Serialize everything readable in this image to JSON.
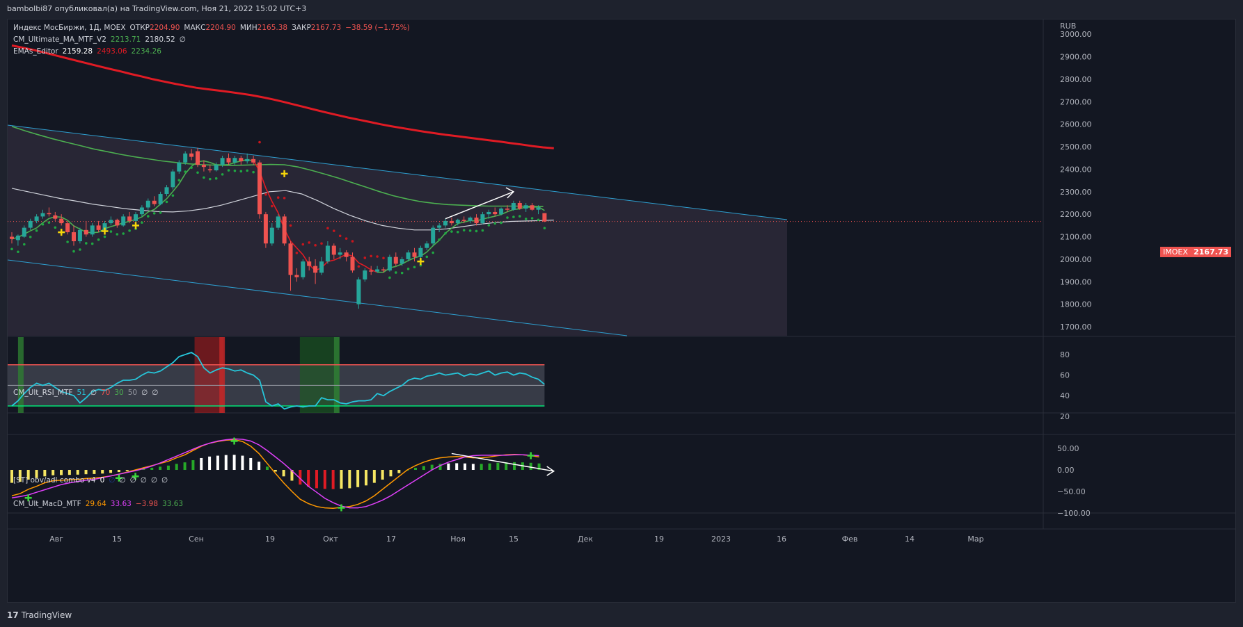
{
  "header": {
    "title": "bambolbi87 опубликовал(а) на TradingView.com, Ноя 21, 2022 15:02 UTC+3"
  },
  "footer": {
    "logo": "17",
    "brand": "TradingView"
  },
  "main_legend": {
    "symbol": "Индекс МосБиржи, 1Д, MOEX",
    "open_label": "ОТКР",
    "open": "2204.90",
    "high_label": "МАКС",
    "high": "2204.90",
    "low_label": "МИН",
    "low": "2165.38",
    "close_label": "ЗАКР",
    "close": "2167.73",
    "change": "−38.59 (−1.75%)",
    "ind1_name": "CM_Ultimate_MA_MTF_V2",
    "ind1_v1": "2213.71",
    "ind1_v2": "2180.52",
    "ind1_v3": "∅",
    "ind2_name": "EMAs_Editor",
    "ind2_v1": "2159.28",
    "ind2_v2": "2493.06",
    "ind2_v3": "2234.26"
  },
  "rsi_legend": {
    "name": "CM_Ult_RSI_MTF",
    "v1": "51",
    "v2": "∅",
    "v3": "70",
    "v4": "30",
    "v5": "50",
    "v6": "∅",
    "v7": "∅"
  },
  "obv_legend": {
    "name": "[ST] obv/adl combo v4",
    "v1": "0",
    "v2": "∅",
    "v3": "∅",
    "v4": "∅",
    "v5": "∅",
    "v6": "∅",
    "v7": "∅"
  },
  "macd_legend": {
    "name": "CM_Ult_MacD_MTF",
    "v1": "29.64",
    "v2": "33.63",
    "v3": "−3.98",
    "v4": "33.63"
  },
  "price_scale": {
    "currency": "RUB",
    "ticks": [
      "3000.00",
      "2900.00",
      "2800.00",
      "2700.00",
      "2600.00",
      "2500.00",
      "2400.00",
      "2300.00",
      "2200.00",
      "2100.00",
      "2000.00",
      "1900.00",
      "1800.00",
      "1700.00"
    ]
  },
  "rsi_scale": {
    "ticks": [
      "80",
      "60",
      "40",
      "20"
    ]
  },
  "macd_scale": {
    "ticks": [
      "50.00",
      "0.00",
      "−50.00",
      "−100.00"
    ]
  },
  "symbol_tag": {
    "label": "IMOEX",
    "value": "2167.73"
  },
  "colors": {
    "up": "#26a69a",
    "down": "#ef5350",
    "ema200": "#e01b24",
    "ma_green": "#4caf50",
    "ma_white": "#d1d4dc",
    "channel": "#2e9fd0",
    "psar_green": "#1fa742",
    "psar_red": "#c8161d",
    "macd_line": "#ff9800",
    "signal_line": "#e040fb",
    "rsi_line": "#26c6da"
  },
  "chart_data": {
    "type": "candlestick",
    "x_axis_ticks": [
      "Авг",
      "15",
      "Сен",
      "19",
      "Окт",
      "17",
      "Ноя",
      "15",
      "Дек",
      "19",
      "2023",
      "16",
      "Фев",
      "14",
      "Мар"
    ],
    "ylim": [
      1660,
      3050
    ],
    "candles": [
      {
        "o": 2100,
        "h": 2120,
        "l": 2070,
        "c": 2090
      },
      {
        "o": 2085,
        "h": 2110,
        "l": 2060,
        "c": 2105
      },
      {
        "o": 2100,
        "h": 2150,
        "l": 2095,
        "c": 2140
      },
      {
        "o": 2140,
        "h": 2180,
        "l": 2130,
        "c": 2170
      },
      {
        "o": 2170,
        "h": 2200,
        "l": 2160,
        "c": 2190
      },
      {
        "o": 2190,
        "h": 2220,
        "l": 2180,
        "c": 2205
      },
      {
        "o": 2205,
        "h": 2230,
        "l": 2190,
        "c": 2200
      },
      {
        "o": 2195,
        "h": 2210,
        "l": 2170,
        "c": 2180
      },
      {
        "o": 2180,
        "h": 2200,
        "l": 2150,
        "c": 2160
      },
      {
        "o": 2160,
        "h": 2170,
        "l": 2110,
        "c": 2120
      },
      {
        "o": 2120,
        "h": 2150,
        "l": 2060,
        "c": 2080
      },
      {
        "o": 2080,
        "h": 2140,
        "l": 2070,
        "c": 2130
      },
      {
        "o": 2130,
        "h": 2170,
        "l": 2100,
        "c": 2110
      },
      {
        "o": 2110,
        "h": 2160,
        "l": 2100,
        "c": 2150
      },
      {
        "o": 2150,
        "h": 2170,
        "l": 2120,
        "c": 2130
      },
      {
        "o": 2130,
        "h": 2170,
        "l": 2125,
        "c": 2160
      },
      {
        "o": 2160,
        "h": 2190,
        "l": 2150,
        "c": 2175
      },
      {
        "o": 2175,
        "h": 2180,
        "l": 2140,
        "c": 2150
      },
      {
        "o": 2150,
        "h": 2200,
        "l": 2145,
        "c": 2190
      },
      {
        "o": 2190,
        "h": 2210,
        "l": 2160,
        "c": 2170
      },
      {
        "o": 2170,
        "h": 2210,
        "l": 2160,
        "c": 2200
      },
      {
        "o": 2200,
        "h": 2240,
        "l": 2190,
        "c": 2230
      },
      {
        "o": 2230,
        "h": 2270,
        "l": 2220,
        "c": 2260
      },
      {
        "o": 2260,
        "h": 2280,
        "l": 2235,
        "c": 2245
      },
      {
        "o": 2245,
        "h": 2300,
        "l": 2240,
        "c": 2290
      },
      {
        "o": 2290,
        "h": 2330,
        "l": 2280,
        "c": 2320
      },
      {
        "o": 2320,
        "h": 2400,
        "l": 2310,
        "c": 2390
      },
      {
        "o": 2390,
        "h": 2440,
        "l": 2380,
        "c": 2430
      },
      {
        "o": 2430,
        "h": 2480,
        "l": 2420,
        "c": 2470
      },
      {
        "o": 2470,
        "h": 2490,
        "l": 2440,
        "c": 2455
      },
      {
        "o": 2480,
        "h": 2495,
        "l": 2410,
        "c": 2420
      },
      {
        "o": 2420,
        "h": 2440,
        "l": 2390,
        "c": 2410
      },
      {
        "o": 2400,
        "h": 2420,
        "l": 2385,
        "c": 2395
      },
      {
        "o": 2395,
        "h": 2430,
        "l": 2390,
        "c": 2420
      },
      {
        "o": 2420,
        "h": 2460,
        "l": 2410,
        "c": 2450
      },
      {
        "o": 2450,
        "h": 2470,
        "l": 2420,
        "c": 2430
      },
      {
        "o": 2430,
        "h": 2460,
        "l": 2420,
        "c": 2450
      },
      {
        "o": 2450,
        "h": 2460,
        "l": 2420,
        "c": 2435
      },
      {
        "o": 2435,
        "h": 2470,
        "l": 2425,
        "c": 2445
      },
      {
        "o": 2445,
        "h": 2460,
        "l": 2420,
        "c": 2430
      },
      {
        "o": 2430,
        "h": 2440,
        "l": 2180,
        "c": 2200
      },
      {
        "o": 2200,
        "h": 2210,
        "l": 2050,
        "c": 2070
      },
      {
        "o": 2070,
        "h": 2160,
        "l": 2060,
        "c": 2140
      },
      {
        "o": 2140,
        "h": 2200,
        "l": 2130,
        "c": 2190
      },
      {
        "o": 2190,
        "h": 2200,
        "l": 2060,
        "c": 2070
      },
      {
        "o": 2070,
        "h": 2080,
        "l": 1860,
        "c": 1930
      },
      {
        "o": 1930,
        "h": 1960,
        "l": 1900,
        "c": 1920
      },
      {
        "o": 1920,
        "h": 2000,
        "l": 1910,
        "c": 1990
      },
      {
        "o": 1990,
        "h": 2010,
        "l": 1950,
        "c": 1970
      },
      {
        "o": 1970,
        "h": 2000,
        "l": 1890,
        "c": 1940
      },
      {
        "o": 1940,
        "h": 2010,
        "l": 1930,
        "c": 1990
      },
      {
        "o": 1990,
        "h": 2080,
        "l": 1980,
        "c": 2060
      },
      {
        "o": 2060,
        "h": 2070,
        "l": 2000,
        "c": 2020
      },
      {
        "o": 2020,
        "h": 2050,
        "l": 2000,
        "c": 2030
      },
      {
        "o": 2030,
        "h": 2040,
        "l": 1990,
        "c": 2010
      },
      {
        "o": 2010,
        "h": 2030,
        "l": 1940,
        "c": 1950
      },
      {
        "o": 1800,
        "h": 1920,
        "l": 1780,
        "c": 1910
      },
      {
        "o": 1910,
        "h": 1960,
        "l": 1900,
        "c": 1950
      },
      {
        "o": 1950,
        "h": 1970,
        "l": 1930,
        "c": 1945
      },
      {
        "o": 1945,
        "h": 1970,
        "l": 1940,
        "c": 1955
      },
      {
        "o": 1955,
        "h": 1965,
        "l": 1940,
        "c": 1950
      },
      {
        "o": 1950,
        "h": 2020,
        "l": 1945,
        "c": 2010
      },
      {
        "o": 2010,
        "h": 2030,
        "l": 1970,
        "c": 1980
      },
      {
        "o": 1980,
        "h": 2010,
        "l": 1970,
        "c": 2000
      },
      {
        "o": 2000,
        "h": 2040,
        "l": 1990,
        "c": 2030
      },
      {
        "o": 2030,
        "h": 2050,
        "l": 1990,
        "c": 2010
      },
      {
        "o": 2010,
        "h": 2060,
        "l": 2000,
        "c": 2050
      },
      {
        "o": 2050,
        "h": 2080,
        "l": 2040,
        "c": 2070
      },
      {
        "o": 2070,
        "h": 2150,
        "l": 2060,
        "c": 2140
      },
      {
        "o": 2140,
        "h": 2160,
        "l": 2120,
        "c": 2150
      },
      {
        "o": 2150,
        "h": 2180,
        "l": 2140,
        "c": 2170
      },
      {
        "o": 2170,
        "h": 2185,
        "l": 2150,
        "c": 2160
      },
      {
        "o": 2160,
        "h": 2180,
        "l": 2150,
        "c": 2175
      },
      {
        "o": 2175,
        "h": 2190,
        "l": 2160,
        "c": 2170
      },
      {
        "o": 2170,
        "h": 2190,
        "l": 2160,
        "c": 2185
      },
      {
        "o": 2185,
        "h": 2200,
        "l": 2150,
        "c": 2160
      },
      {
        "o": 2160,
        "h": 2210,
        "l": 2155,
        "c": 2200
      },
      {
        "o": 2200,
        "h": 2220,
        "l": 2180,
        "c": 2210
      },
      {
        "o": 2210,
        "h": 2230,
        "l": 2190,
        "c": 2200
      },
      {
        "o": 2200,
        "h": 2230,
        "l": 2195,
        "c": 2225
      },
      {
        "o": 2225,
        "h": 2240,
        "l": 2210,
        "c": 2220
      },
      {
        "o": 2220,
        "h": 2260,
        "l": 2215,
        "c": 2250
      },
      {
        "o": 2250,
        "h": 2260,
        "l": 2220,
        "c": 2225
      },
      {
        "o": 2225,
        "h": 2250,
        "l": 2210,
        "c": 2240
      },
      {
        "o": 2240,
        "h": 2250,
        "l": 2215,
        "c": 2220
      },
      {
        "o": 2220,
        "h": 2240,
        "l": 2200,
        "c": 2230
      },
      {
        "o": 2204.9,
        "h": 2204.9,
        "l": 2165.38,
        "c": 2167.73
      }
    ],
    "ema_red": [
      2950,
      2940,
      2930,
      2918,
      2906,
      2894,
      2882,
      2870,
      2858,
      2846,
      2835,
      2823,
      2812,
      2800,
      2790,
      2780,
      2771,
      2762,
      2756,
      2750,
      2744,
      2737,
      2730,
      2721,
      2711,
      2700,
      2688,
      2676,
      2664,
      2652,
      2641,
      2630,
      2620,
      2610,
      2600,
      2591,
      2583,
      2575,
      2567,
      2560,
      2553,
      2547,
      2541,
      2535,
      2529,
      2523,
      2516,
      2510,
      2503,
      2497,
      2493
    ],
    "ema_red_x": [
      0,
      1.75,
      3.5,
      5.25,
      7,
      8.75,
      10.5,
      12.25,
      14,
      15.75,
      17.5,
      19.25,
      21,
      22.75,
      24.5,
      26.25,
      28,
      29.75,
      31.5,
      33.25,
      35,
      36.75,
      38.5,
      40.25,
      42,
      43.75,
      45.5,
      47.25,
      49,
      50.75,
      52.5,
      54.25,
      56,
      57.75,
      59.5,
      61.25,
      63,
      64.75,
      66.5,
      68.25,
      70,
      71.75,
      73.5,
      75.25,
      77,
      78.75,
      80.5,
      82.25,
      84,
      85.75,
      87.5
    ],
    "ma_green": [
      2590,
      2570,
      2552,
      2535,
      2520,
      2505,
      2490,
      2478,
      2466,
      2455,
      2446,
      2437,
      2430,
      2424,
      2420,
      2418,
      2417,
      2418,
      2420,
      2421,
      2420,
      2410,
      2395,
      2378,
      2360,
      2340,
      2320,
      2300,
      2282,
      2268,
      2256,
      2248,
      2243,
      2240,
      2238,
      2236,
      2236,
      2236,
      2235,
      2234
    ],
    "ma_green_x": [
      0,
      2.2,
      4.4,
      6.6,
      8.8,
      11,
      13.2,
      15.4,
      17.6,
      19.8,
      22,
      24.2,
      26.4,
      28.6,
      30.8,
      33,
      35.2,
      37.4,
      39.6,
      41.8,
      44,
      46.2,
      48.4,
      50.6,
      52.8,
      55,
      57.2,
      59.4,
      61.6,
      63.8,
      66,
      68.2,
      70.4,
      72.6,
      74.8,
      77,
      79.2,
      81.4,
      83.6,
      85.8
    ],
    "ma_white": [
      2315,
      2300,
      2285,
      2270,
      2258,
      2245,
      2235,
      2225,
      2218,
      2212,
      2210,
      2215,
      2225,
      2240,
      2260,
      2280,
      2300,
      2305,
      2290,
      2260,
      2225,
      2195,
      2170,
      2150,
      2138,
      2130,
      2130,
      2135,
      2145,
      2155,
      2163,
      2168,
      2170,
      2172,
      2174
    ],
    "ma_white_x": [
      0,
      2.6,
      5.2,
      7.8,
      10.4,
      13,
      15.6,
      18.2,
      20.8,
      23.4,
      26,
      28.6,
      31.2,
      33.8,
      36.4,
      39,
      41.6,
      44.2,
      46.8,
      49.4,
      52,
      54.6,
      57.2,
      59.8,
      62.4,
      65,
      67.6,
      70.2,
      72.8,
      75.4,
      78,
      80.6,
      83.2,
      85.8,
      87.5
    ],
    "rsi": [
      30,
      35,
      42,
      48,
      52,
      50,
      52,
      48,
      44,
      42,
      40,
      33,
      38,
      44,
      46,
      45,
      48,
      52,
      55,
      55,
      56,
      60,
      63,
      62,
      64,
      68,
      72,
      78,
      80,
      82,
      78,
      67,
      62,
      65,
      67,
      66,
      64,
      65,
      62,
      60,
      55,
      34,
      30,
      32,
      27,
      29,
      30,
      29,
      30,
      30,
      38,
      36,
      36,
      33,
      32,
      34,
      35,
      35,
      36,
      42,
      40,
      44,
      47,
      50,
      55,
      57,
      56,
      59,
      60,
      62,
      60,
      61,
      62,
      59,
      61,
      60,
      62,
      64,
      60,
      62,
      63,
      60,
      62,
      61,
      58,
      56,
      51
    ],
    "macd_line": [
      -60,
      -55,
      -45,
      -38,
      -30,
      -25,
      -24,
      -23,
      -22,
      -20,
      -19,
      -17,
      -14,
      -10,
      -5,
      0,
      5,
      10,
      15,
      20,
      28,
      35,
      45,
      55,
      62,
      66,
      69,
      70,
      66,
      55,
      38,
      15,
      -8,
      -30,
      -50,
      -68,
      -78,
      -85,
      -88,
      -89,
      -87,
      -85,
      -80,
      -72,
      -60,
      -45,
      -30,
      -15,
      0,
      10,
      18,
      24,
      28,
      30,
      31,
      30,
      28,
      28,
      30,
      33,
      35,
      36,
      35,
      33,
      30
    ],
    "signal_line": [
      -65,
      -62,
      -58,
      -52,
      -46,
      -40,
      -34,
      -30,
      -27,
      -24,
      -22,
      -18,
      -14,
      -10,
      -6,
      -2,
      3,
      9,
      16,
      24,
      32,
      40,
      48,
      56,
      62,
      67,
      70,
      72,
      71,
      67,
      58,
      45,
      30,
      15,
      -2,
      -20,
      -38,
      -52,
      -66,
      -76,
      -84,
      -88,
      -88,
      -85,
      -78,
      -70,
      -60,
      -48,
      -36,
      -24,
      -12,
      0,
      10,
      18,
      24,
      30,
      33,
      34,
      34,
      34,
      34,
      35,
      35,
      34,
      33
    ]
  }
}
